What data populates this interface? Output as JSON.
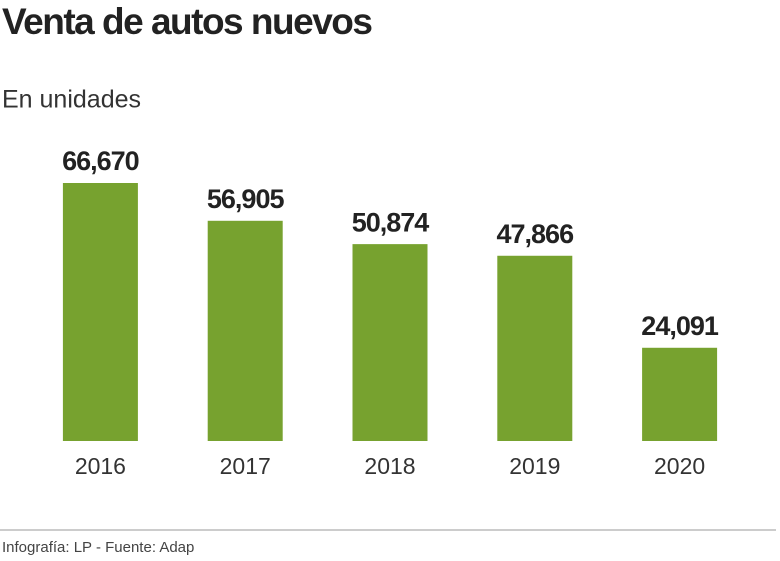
{
  "chart_data": {
    "type": "bar",
    "title": "Venta de autos nuevos",
    "subtitle": "En unidades",
    "categories": [
      "2016",
      "2017",
      "2018",
      "2019",
      "2020"
    ],
    "values": [
      66670,
      56905,
      50874,
      47866,
      24091
    ],
    "value_labels": [
      "66,670",
      "56,905",
      "50,874",
      "47,866",
      "24,091"
    ],
    "color": "#77a22f",
    "source": "Infografía: LP - Fuente: Adap"
  }
}
